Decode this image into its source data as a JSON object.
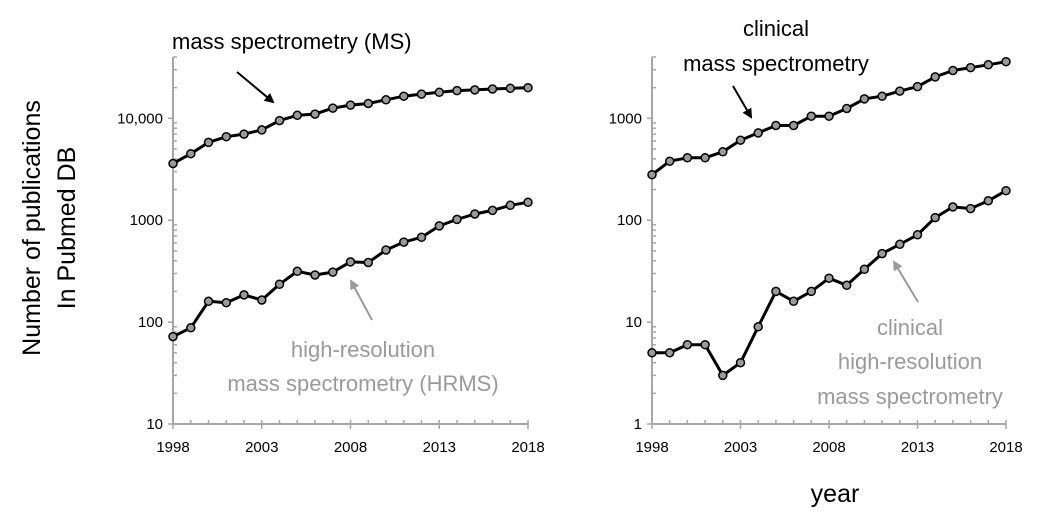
{
  "y_axis_label": [
    "Number of publications",
    "In Pubmed DB"
  ],
  "x_axis_label": "year",
  "colors": {
    "dark": "#000000",
    "grey_text": "#9a9a9a",
    "marker_fill": "#9a9a9a",
    "axis": "#a6a6a6"
  },
  "chart_data": [
    {
      "type": "line",
      "yscale": "log",
      "ylim": [
        10,
        40000
      ],
      "xlim": [
        1998,
        2018
      ],
      "x_ticks": [
        1998,
        2003,
        2008,
        2013,
        2018
      ],
      "y_ticks": [
        {
          "value": 10,
          "label": "10"
        },
        {
          "value": 100,
          "label": "100"
        },
        {
          "value": 1000,
          "label": "1000"
        },
        {
          "value": 10000,
          "label": "10,000"
        }
      ],
      "x": [
        1998,
        1999,
        2000,
        2001,
        2002,
        2003,
        2004,
        2005,
        2006,
        2007,
        2008,
        2009,
        2010,
        2011,
        2012,
        2013,
        2014,
        2015,
        2016,
        2017,
        2018
      ],
      "series": [
        {
          "name": "mass spectrometry (MS)",
          "values": [
            3600,
            4500,
            5800,
            6600,
            7000,
            7700,
            9500,
            10700,
            11000,
            12600,
            13500,
            14000,
            15200,
            16500,
            17300,
            18000,
            18700,
            19000,
            19400,
            19700,
            20000
          ]
        },
        {
          "name": "high-resolution mass spectrometry (HRMS)",
          "values": [
            72,
            88,
            160,
            155,
            185,
            165,
            235,
            315,
            290,
            310,
            390,
            385,
            510,
            610,
            680,
            880,
            1020,
            1150,
            1250,
            1400,
            1500
          ]
        }
      ],
      "annotations": [
        {
          "lines": [
            "mass spectrometry (MS)"
          ],
          "series": 0,
          "tone": "dark"
        },
        {
          "lines": [
            "high-resolution",
            "mass spectrometry (HRMS)"
          ],
          "series": 1,
          "tone": "grey"
        }
      ]
    },
    {
      "type": "line",
      "yscale": "log",
      "ylim": [
        1,
        4000
      ],
      "xlim": [
        1998,
        2018
      ],
      "x_ticks": [
        1998,
        2003,
        2008,
        2013,
        2018
      ],
      "y_ticks": [
        {
          "value": 1,
          "label": "1"
        },
        {
          "value": 10,
          "label": "10"
        },
        {
          "value": 100,
          "label": "100"
        },
        {
          "value": 1000,
          "label": "1000"
        }
      ],
      "x": [
        1998,
        1999,
        2000,
        2001,
        2002,
        2003,
        2004,
        2005,
        2006,
        2007,
        2008,
        2009,
        2010,
        2011,
        2012,
        2013,
        2014,
        2015,
        2016,
        2017,
        2018
      ],
      "series": [
        {
          "name": "clinical mass spectrometry",
          "values": [
            280,
            380,
            410,
            410,
            470,
            610,
            720,
            850,
            850,
            1050,
            1050,
            1250,
            1550,
            1650,
            1850,
            2050,
            2550,
            2950,
            3150,
            3350,
            3600
          ]
        },
        {
          "name": "clinical high-resolution mass spectrometry",
          "values": [
            5,
            5,
            6,
            6,
            3,
            4,
            9,
            20,
            16,
            20,
            27,
            23,
            33,
            47,
            58,
            72,
            106,
            135,
            130,
            155,
            195
          ]
        }
      ],
      "annotations": [
        {
          "lines": [
            "clinical",
            "mass spectrometry"
          ],
          "series": 0,
          "tone": "dark"
        },
        {
          "lines": [
            "clinical",
            "high-resolution",
            "mass spectrometry"
          ],
          "series": 1,
          "tone": "grey"
        }
      ]
    }
  ]
}
